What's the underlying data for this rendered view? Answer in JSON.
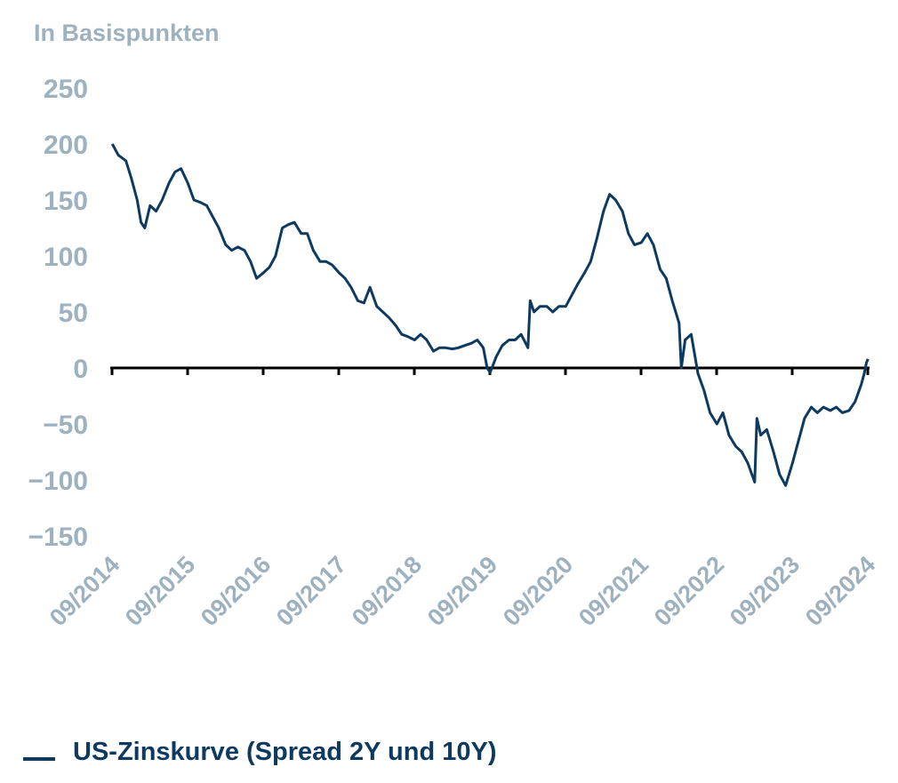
{
  "chart_data": {
    "type": "line",
    "ylabel": "In Basispunkten",
    "ylim": [
      -150,
      250
    ],
    "yticks": [
      "250",
      "200",
      "150",
      "100",
      "50",
      "0",
      "−50",
      "−100",
      "−150"
    ],
    "ytick_values": [
      250,
      200,
      150,
      100,
      50,
      0,
      -50,
      -100,
      -150
    ],
    "xlim": [
      2014.667,
      2024.667
    ],
    "xtick_labels": [
      "09/2014",
      "09/2015",
      "09/2016",
      "09/2017",
      "09/2018",
      "09/2019",
      "09/2020",
      "09/2021",
      "09/2022",
      "09/2023",
      "09/2024"
    ],
    "xtick_values": [
      2014.667,
      2015.667,
      2016.667,
      2017.667,
      2018.667,
      2019.667,
      2020.667,
      2021.667,
      2022.667,
      2023.667,
      2024.667
    ],
    "zero_line": true,
    "grid": false,
    "legend_position": "bottom-left",
    "series": [
      {
        "name": "US-Zinskurve (Spread 2Y und 10Y)",
        "color": "#0d3a5e",
        "points": [
          [
            2014.67,
            200
          ],
          [
            2014.75,
            190
          ],
          [
            2014.85,
            185
          ],
          [
            2014.92,
            170
          ],
          [
            2015.0,
            150
          ],
          [
            2015.05,
            130
          ],
          [
            2015.1,
            125
          ],
          [
            2015.17,
            145
          ],
          [
            2015.25,
            140
          ],
          [
            2015.33,
            150
          ],
          [
            2015.42,
            165
          ],
          [
            2015.5,
            175
          ],
          [
            2015.58,
            178
          ],
          [
            2015.67,
            165
          ],
          [
            2015.75,
            150
          ],
          [
            2015.83,
            148
          ],
          [
            2015.92,
            145
          ],
          [
            2016.0,
            135
          ],
          [
            2016.08,
            125
          ],
          [
            2016.17,
            110
          ],
          [
            2016.25,
            105
          ],
          [
            2016.33,
            108
          ],
          [
            2016.42,
            105
          ],
          [
            2016.5,
            95
          ],
          [
            2016.58,
            80
          ],
          [
            2016.67,
            85
          ],
          [
            2016.75,
            90
          ],
          [
            2016.83,
            100
          ],
          [
            2016.92,
            125
          ],
          [
            2017.0,
            128
          ],
          [
            2017.08,
            130
          ],
          [
            2017.17,
            120
          ],
          [
            2017.25,
            120
          ],
          [
            2017.33,
            105
          ],
          [
            2017.42,
            95
          ],
          [
            2017.5,
            95
          ],
          [
            2017.58,
            92
          ],
          [
            2017.67,
            85
          ],
          [
            2017.75,
            80
          ],
          [
            2017.83,
            72
          ],
          [
            2017.92,
            60
          ],
          [
            2018.0,
            58
          ],
          [
            2018.08,
            72
          ],
          [
            2018.17,
            55
          ],
          [
            2018.25,
            50
          ],
          [
            2018.33,
            45
          ],
          [
            2018.42,
            38
          ],
          [
            2018.5,
            30
          ],
          [
            2018.58,
            28
          ],
          [
            2018.67,
            25
          ],
          [
            2018.75,
            30
          ],
          [
            2018.83,
            25
          ],
          [
            2018.92,
            15
          ],
          [
            2019.0,
            18
          ],
          [
            2019.08,
            18
          ],
          [
            2019.17,
            17
          ],
          [
            2019.25,
            18
          ],
          [
            2019.33,
            20
          ],
          [
            2019.42,
            22
          ],
          [
            2019.5,
            25
          ],
          [
            2019.58,
            18
          ],
          [
            2019.63,
            0
          ],
          [
            2019.67,
            -4
          ],
          [
            2019.75,
            10
          ],
          [
            2019.83,
            20
          ],
          [
            2019.92,
            25
          ],
          [
            2020.0,
            25
          ],
          [
            2020.08,
            30
          ],
          [
            2020.17,
            18
          ],
          [
            2020.2,
            60
          ],
          [
            2020.25,
            50
          ],
          [
            2020.33,
            55
          ],
          [
            2020.42,
            55
          ],
          [
            2020.5,
            50
          ],
          [
            2020.58,
            55
          ],
          [
            2020.67,
            55
          ],
          [
            2020.75,
            65
          ],
          [
            2020.83,
            75
          ],
          [
            2020.92,
            85
          ],
          [
            2021.0,
            95
          ],
          [
            2021.08,
            115
          ],
          [
            2021.17,
            140
          ],
          [
            2021.25,
            155
          ],
          [
            2021.33,
            150
          ],
          [
            2021.42,
            140
          ],
          [
            2021.5,
            120
          ],
          [
            2021.58,
            110
          ],
          [
            2021.67,
            112
          ],
          [
            2021.75,
            120
          ],
          [
            2021.83,
            110
          ],
          [
            2021.92,
            88
          ],
          [
            2022.0,
            80
          ],
          [
            2022.08,
            60
          ],
          [
            2022.17,
            40
          ],
          [
            2022.2,
            0
          ],
          [
            2022.25,
            25
          ],
          [
            2022.33,
            30
          ],
          [
            2022.42,
            -5
          ],
          [
            2022.5,
            -20
          ],
          [
            2022.58,
            -40
          ],
          [
            2022.67,
            -50
          ],
          [
            2022.75,
            -40
          ],
          [
            2022.83,
            -60
          ],
          [
            2022.92,
            -70
          ],
          [
            2023.0,
            -75
          ],
          [
            2023.08,
            -85
          ],
          [
            2023.17,
            -102
          ],
          [
            2023.2,
            -45
          ],
          [
            2023.25,
            -60
          ],
          [
            2023.33,
            -55
          ],
          [
            2023.42,
            -75
          ],
          [
            2023.5,
            -95
          ],
          [
            2023.58,
            -105
          ],
          [
            2023.67,
            -85
          ],
          [
            2023.75,
            -65
          ],
          [
            2023.83,
            -45
          ],
          [
            2023.92,
            -35
          ],
          [
            2024.0,
            -40
          ],
          [
            2024.08,
            -35
          ],
          [
            2024.17,
            -38
          ],
          [
            2024.25,
            -35
          ],
          [
            2024.33,
            -40
          ],
          [
            2024.42,
            -38
          ],
          [
            2024.5,
            -30
          ],
          [
            2024.58,
            -15
          ],
          [
            2024.62,
            -5
          ],
          [
            2024.65,
            5
          ],
          [
            2024.67,
            8
          ]
        ]
      }
    ]
  },
  "legend": {
    "label": "US-Zinskurve (Spread 2Y und 10Y)"
  }
}
